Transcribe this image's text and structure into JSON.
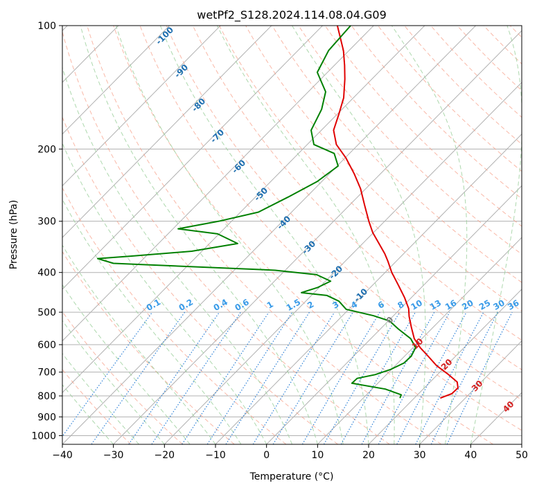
{
  "chart_data": {
    "type": "line",
    "subtype": "skew-t log-p",
    "title": "wetPf2_S128.2024.114.08.04.G09",
    "xlabel": "Temperature (°C)",
    "ylabel": "Pressure (hPa)",
    "xlim": [
      -40,
      50
    ],
    "ylim": [
      1050,
      100
    ],
    "y_scale": "log",
    "x_ticks": [
      -40,
      -30,
      -20,
      -10,
      0,
      10,
      20,
      30,
      40,
      50
    ],
    "y_ticks": [
      100,
      200,
      300,
      400,
      500,
      600,
      700,
      800,
      900,
      1000
    ],
    "grid": true,
    "series": [
      {
        "color": "#e00000",
        "values": [
          {
            "p": 810,
            "t": 25.1
          },
          {
            "p": 790,
            "t": 26.5
          },
          {
            "p": 765,
            "t": 26.6
          },
          {
            "p": 740,
            "t": 25.3
          },
          {
            "p": 710,
            "t": 22.2
          },
          {
            "p": 675,
            "t": 18.1
          },
          {
            "p": 640,
            "t": 14.6
          },
          {
            "p": 610,
            "t": 11.4
          },
          {
            "p": 580,
            "t": 8.5
          },
          {
            "p": 545,
            "t": 5.8
          },
          {
            "p": 512,
            "t": 3.2
          },
          {
            "p": 490,
            "t": 1.6
          },
          {
            "p": 460,
            "t": -1.4
          },
          {
            "p": 430,
            "t": -4.9
          },
          {
            "p": 400,
            "t": -8.7
          },
          {
            "p": 375,
            "t": -11.7
          },
          {
            "p": 360,
            "t": -13.7
          },
          {
            "p": 340,
            "t": -16.8
          },
          {
            "p": 320,
            "t": -20.1
          },
          {
            "p": 300,
            "t": -23.1
          },
          {
            "p": 275,
            "t": -26.9
          },
          {
            "p": 250,
            "t": -31.0
          },
          {
            "p": 230,
            "t": -35.1
          },
          {
            "p": 210,
            "t": -39.9
          },
          {
            "p": 195,
            "t": -44.3
          },
          {
            "p": 180,
            "t": -47.6
          },
          {
            "p": 165,
            "t": -49.6
          },
          {
            "p": 150,
            "t": -51.9
          },
          {
            "p": 135,
            "t": -55.3
          },
          {
            "p": 125,
            "t": -58.0
          },
          {
            "p": 115,
            "t": -61.1
          },
          {
            "p": 100,
            "t": -67.1
          }
        ]
      },
      {
        "color": "#008000",
        "values": [
          {
            "p": 810,
            "t": 17.2
          },
          {
            "p": 795,
            "t": 16.8
          },
          {
            "p": 770,
            "t": 12.6
          },
          {
            "p": 745,
            "t": 4.9
          },
          {
            "p": 725,
            "t": 5.0
          },
          {
            "p": 710,
            "t": 7.8
          },
          {
            "p": 690,
            "t": 9.8
          },
          {
            "p": 665,
            "t": 11.2
          },
          {
            "p": 640,
            "t": 11.3
          },
          {
            "p": 610,
            "t": 10.5
          },
          {
            "p": 580,
            "t": 7.8
          },
          {
            "p": 550,
            "t": 3.6
          },
          {
            "p": 525,
            "t": 0.2
          },
          {
            "p": 510,
            "t": -3.9
          },
          {
            "p": 492,
            "t": -10.5
          },
          {
            "p": 470,
            "t": -13.5
          },
          {
            "p": 455,
            "t": -17.0
          },
          {
            "p": 448,
            "t": -22.5
          },
          {
            "p": 435,
            "t": -20.3
          },
          {
            "p": 420,
            "t": -19.0
          },
          {
            "p": 405,
            "t": -23.0
          },
          {
            "p": 395,
            "t": -32.0
          },
          {
            "p": 380,
            "t": -65.0
          },
          {
            "p": 370,
            "t": -69.0
          },
          {
            "p": 365,
            "t": -63.0
          },
          {
            "p": 355,
            "t": -52.0
          },
          {
            "p": 340,
            "t": -44.5
          },
          {
            "p": 322,
            "t": -50.3
          },
          {
            "p": 313,
            "t": -59.0
          },
          {
            "p": 300,
            "t": -52.5
          },
          {
            "p": 285,
            "t": -46.5
          },
          {
            "p": 262,
            "t": -43.6
          },
          {
            "p": 240,
            "t": -40.9
          },
          {
            "p": 220,
            "t": -39.8
          },
          {
            "p": 205,
            "t": -43.0
          },
          {
            "p": 195,
            "t": -48.7
          },
          {
            "p": 180,
            "t": -52.0
          },
          {
            "p": 160,
            "t": -54.0
          },
          {
            "p": 145,
            "t": -56.6
          },
          {
            "p": 130,
            "t": -62.0
          },
          {
            "p": 115,
            "t": -64.0
          },
          {
            "p": 100,
            "t": -64.5
          }
        ]
      }
    ],
    "dry_adiabat_labels": [
      "-100",
      "-90",
      "-80",
      "-70",
      "-60",
      "-50",
      "-40",
      "-30",
      "-20",
      "-10"
    ],
    "mixing_ratio_labels": [
      "0.1",
      "0.2",
      "0.4",
      "0.6",
      "1",
      "1.5",
      "2",
      "3",
      "4",
      "6",
      "8",
      "10",
      "13",
      "16",
      "20",
      "25",
      "30",
      "36"
    ],
    "moist_adiabat_labels": [
      "0",
      "10",
      "20",
      "30",
      "40"
    ],
    "colors": {
      "temperature": "#e00000",
      "dewpoint": "#008000",
      "isotherm": "#b0b0b0",
      "dry_adiabat": "#f7a08a",
      "moist_adiabat": "#9fd19f",
      "mixing_ratio": "#2a7fd6",
      "dry_label": "#1f6fb0",
      "mixing_label": "#3a9be8",
      "moist_label_hot": "#d42020",
      "moist_label_zero": "#808080"
    }
  }
}
